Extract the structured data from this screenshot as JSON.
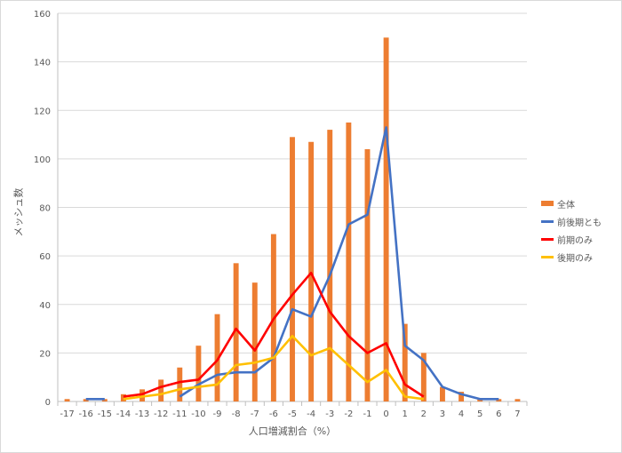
{
  "chart_data": {
    "type": "bar",
    "title": "",
    "xlabel": "人口増減割合（%）",
    "ylabel": "メッシュ数",
    "ylim": [
      0,
      160
    ],
    "yticks": [
      0,
      20,
      40,
      60,
      80,
      100,
      120,
      140,
      160
    ],
    "grid": true,
    "legend_position": "right",
    "categories": [
      "-17",
      "-16",
      "-15",
      "-14",
      "-13",
      "-12",
      "-11",
      "-10",
      "-9",
      "-8",
      "-7",
      "-6",
      "-5",
      "-4",
      "-3",
      "-2",
      "-1",
      "0",
      "1",
      "2",
      "3",
      "4",
      "5",
      "6",
      "7"
    ],
    "series": [
      {
        "name": "全体",
        "kind": "bar",
        "color": "#ed7d31",
        "values": [
          1,
          1,
          1,
          3,
          5,
          9,
          14,
          23,
          36,
          57,
          49,
          69,
          109,
          107,
          112,
          115,
          104,
          150,
          32,
          20,
          6,
          4,
          1,
          1,
          1
        ]
      },
      {
        "name": "前後期とも",
        "kind": "line",
        "color": "#4472c4",
        "values": [
          null,
          1,
          1,
          null,
          null,
          null,
          2,
          7,
          11,
          12,
          12,
          18,
          38,
          35,
          52,
          73,
          77,
          113,
          23,
          17,
          6,
          3,
          1,
          1,
          null
        ]
      },
      {
        "name": "前期のみ",
        "kind": "line",
        "color": "#ff0000",
        "values": [
          null,
          null,
          null,
          2,
          3,
          6,
          8,
          9,
          17,
          30,
          21,
          34,
          44,
          53,
          37,
          27,
          20,
          24,
          7,
          2,
          null,
          null,
          null,
          null,
          null
        ]
      },
      {
        "name": "後期のみ",
        "kind": "line",
        "color": "#ffc000",
        "values": [
          null,
          null,
          null,
          1,
          2,
          3,
          5,
          6,
          7,
          15,
          16,
          18,
          27,
          19,
          22,
          15,
          8,
          13,
          2,
          1,
          null,
          null,
          null,
          null,
          null
        ]
      }
    ]
  }
}
